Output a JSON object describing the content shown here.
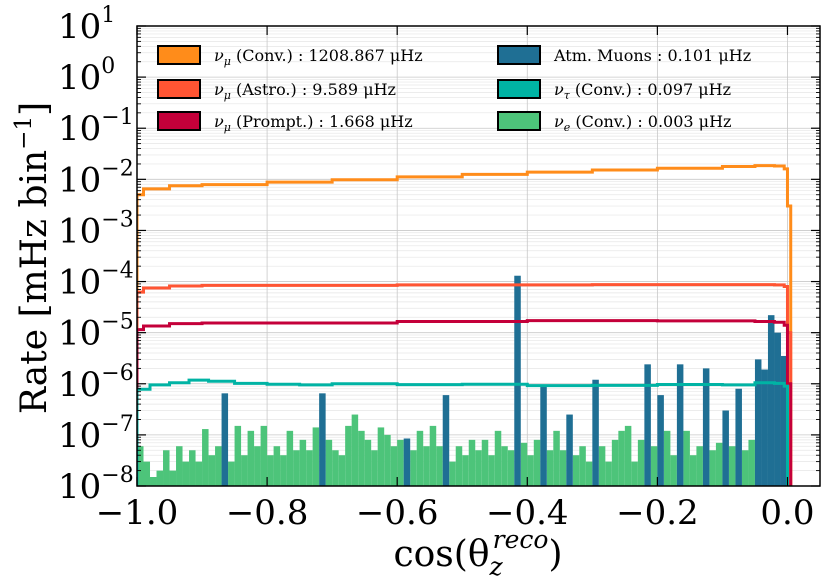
{
  "chart_data": {
    "type": "step-histogram",
    "xlabel": "cos(θ",
    "xlabel_sub": "z",
    "xlabel_sup": "reco",
    "xlabel_close": ")",
    "ylabel": "Rate [mHz bin",
    "ylabel_sup": "−1",
    "ylabel_close": "]",
    "xlim": [
      -1.0,
      0.05
    ],
    "ylim_log10": [
      -8,
      1
    ],
    "x_ticks": [
      {
        "value": -1.0,
        "label": "−1.0"
      },
      {
        "value": -0.8,
        "label": "−0.8"
      },
      {
        "value": -0.6,
        "label": "−0.6"
      },
      {
        "value": -0.4,
        "label": "−0.4"
      },
      {
        "value": -0.2,
        "label": "−0.2"
      },
      {
        "value": 0.0,
        "label": "0.0"
      }
    ],
    "y_ticks": [
      {
        "exp": 1,
        "base": "10",
        "sup": "1"
      },
      {
        "exp": 0,
        "base": "10",
        "sup": "0"
      },
      {
        "exp": -1,
        "base": "10",
        "sup": "−1"
      },
      {
        "exp": -2,
        "base": "10",
        "sup": "−2"
      },
      {
        "exp": -3,
        "base": "10",
        "sup": "−3"
      },
      {
        "exp": -4,
        "base": "10",
        "sup": "−4"
      },
      {
        "exp": -5,
        "base": "10",
        "sup": "−5"
      },
      {
        "exp": -6,
        "base": "10",
        "sup": "−6"
      },
      {
        "exp": -7,
        "base": "10",
        "sup": "−7"
      },
      {
        "exp": -8,
        "base": "10",
        "sup": "−8"
      }
    ],
    "legend": [
      {
        "symbol": "ν",
        "sub": "μ",
        "text": " (Conv.) : 1208.867 μHz",
        "color": "#ff8c1a"
      },
      {
        "symbol": "ν",
        "sub": "μ",
        "text": " (Astro.) : 9.589 μHz",
        "color": "#ff5533"
      },
      {
        "symbol": "ν",
        "sub": "μ",
        "text": " (Prompt.) : 1.668 μHz",
        "color": "#c4003a"
      },
      {
        "symbol": "",
        "sub": "",
        "text": "Atm. Muons : 0.101 μHz",
        "color": "#1f6f94"
      },
      {
        "symbol": "ν",
        "sub": "τ",
        "text": " (Conv.) : 0.097 μHz",
        "color": "#00b3a4"
      },
      {
        "symbol": "ν",
        "sub": "e",
        "text": " (Conv.) : 0.003 μHz",
        "color": "#4dc47a"
      }
    ],
    "series": [
      {
        "name": "nu_mu Conv.",
        "style": "step",
        "color": "#ff8c1a",
        "points": [
          [
            -1.0,
            0.005
          ],
          [
            -0.99,
            0.0065
          ],
          [
            -0.95,
            0.0075
          ],
          [
            -0.9,
            0.0079
          ],
          [
            -0.8,
            0.0088
          ],
          [
            -0.7,
            0.0098
          ],
          [
            -0.6,
            0.0112
          ],
          [
            -0.5,
            0.0125
          ],
          [
            -0.4,
            0.0138
          ],
          [
            -0.3,
            0.0152
          ],
          [
            -0.2,
            0.0165
          ],
          [
            -0.1,
            0.0178
          ],
          [
            -0.05,
            0.0185
          ],
          [
            -0.02,
            0.0182
          ],
          [
            -0.005,
            0.016
          ],
          [
            0.0,
            0.003
          ],
          [
            0.005,
            1e-08
          ]
        ]
      },
      {
        "name": "nu_mu Astro.",
        "style": "step",
        "color": "#ff5533",
        "points": [
          [
            -1.0,
            6.2e-05
          ],
          [
            -0.99,
            7.5e-05
          ],
          [
            -0.95,
            8.2e-05
          ],
          [
            -0.9,
            8.4e-05
          ],
          [
            -0.6,
            8.6e-05
          ],
          [
            -0.3,
            8.7e-05
          ],
          [
            -0.1,
            8.7e-05
          ],
          [
            -0.02,
            8.6e-05
          ],
          [
            -0.005,
            8e-05
          ],
          [
            0.0,
            1e-05
          ],
          [
            0.005,
            1e-08
          ]
        ]
      },
      {
        "name": "nu_mu Prompt.",
        "style": "step",
        "color": "#c4003a",
        "points": [
          [
            -1.0,
            1.15e-05
          ],
          [
            -0.99,
            1.35e-05
          ],
          [
            -0.95,
            1.5e-05
          ],
          [
            -0.9,
            1.55e-05
          ],
          [
            -0.6,
            1.65e-05
          ],
          [
            -0.4,
            1.72e-05
          ],
          [
            -0.2,
            1.7e-05
          ],
          [
            -0.05,
            1.65e-05
          ],
          [
            -0.02,
            1.6e-05
          ],
          [
            -0.005,
            1.4e-05
          ],
          [
            0.0,
            1e-06
          ],
          [
            0.005,
            1e-08
          ]
        ]
      },
      {
        "name": "nu_tau Conv.",
        "style": "step",
        "color": "#00b3a4",
        "points": [
          [
            -1.0,
            7.8e-07
          ],
          [
            -0.98,
            9.5e-07
          ],
          [
            -0.95,
            1.05e-06
          ],
          [
            -0.92,
            1.18e-06
          ],
          [
            -0.89,
            1.12e-06
          ],
          [
            -0.85,
            1.02e-06
          ],
          [
            -0.8,
            9.8e-07
          ],
          [
            -0.75,
            9.5e-07
          ],
          [
            -0.7,
            1e-06
          ],
          [
            -0.6,
            9.6e-07
          ],
          [
            -0.5,
            9.8e-07
          ],
          [
            -0.4,
            9.2e-07
          ],
          [
            -0.3,
            9.3e-07
          ],
          [
            -0.2,
            9.7e-07
          ],
          [
            -0.1,
            9.5e-07
          ],
          [
            -0.05,
            1.05e-06
          ],
          [
            -0.02,
            1.02e-06
          ],
          [
            -0.005,
            9e-07
          ],
          [
            0.0,
            1e-08
          ]
        ]
      },
      {
        "name": "Atm. Muons",
        "style": "bars",
        "color": "#1f6f94",
        "bin_width": 0.01,
        "bars": [
          [
            -0.865,
            6.5e-07
          ],
          [
            -0.715,
            6.5e-07
          ],
          [
            -0.585,
            8.5e-08
          ],
          [
            -0.525,
            6e-07
          ],
          [
            -0.415,
            0.00013
          ],
          [
            -0.375,
            9e-07
          ],
          [
            -0.335,
            2.5e-07
          ],
          [
            -0.295,
            1.2e-06
          ],
          [
            -0.215,
            2.4e-06
          ],
          [
            -0.195,
            6e-07
          ],
          [
            -0.165,
            2.4e-06
          ],
          [
            -0.125,
            2e-06
          ],
          [
            -0.095,
            3e-07
          ],
          [
            -0.075,
            8e-07
          ],
          [
            -0.045,
            3e-06
          ],
          [
            -0.035,
            1.9e-06
          ],
          [
            -0.025,
            2.2e-05
          ],
          [
            -0.015,
            1e-05
          ],
          [
            -0.005,
            3.5e-06
          ]
        ]
      },
      {
        "name": "nu_e Conv.",
        "style": "bars",
        "color": "#4dc47a",
        "bin_width": 0.01,
        "bars": [
          [
            -0.995,
            6e-08
          ],
          [
            -0.985,
            3e-08
          ],
          [
            -0.975,
            1.5e-08
          ],
          [
            -0.965,
            2e-08
          ],
          [
            -0.955,
            5e-08
          ],
          [
            -0.945,
            2e-08
          ],
          [
            -0.935,
            6e-08
          ],
          [
            -0.925,
            3e-08
          ],
          [
            -0.915,
            5e-08
          ],
          [
            -0.905,
            3e-08
          ],
          [
            -0.895,
            1.3e-07
          ],
          [
            -0.885,
            4e-08
          ],
          [
            -0.875,
            6e-08
          ],
          [
            -0.855,
            3e-08
          ],
          [
            -0.845,
            1.5e-07
          ],
          [
            -0.835,
            4e-08
          ],
          [
            -0.825,
            1.2e-07
          ],
          [
            -0.815,
            6e-08
          ],
          [
            -0.805,
            1.5e-07
          ],
          [
            -0.795,
            4e-08
          ],
          [
            -0.785,
            6e-08
          ],
          [
            -0.775,
            4e-08
          ],
          [
            -0.765,
            1.2e-07
          ],
          [
            -0.755,
            5e-08
          ],
          [
            -0.745,
            8e-08
          ],
          [
            -0.735,
            5e-08
          ],
          [
            -0.725,
            1.4e-07
          ],
          [
            -0.705,
            8e-08
          ],
          [
            -0.695,
            5e-08
          ],
          [
            -0.685,
            4e-08
          ],
          [
            -0.675,
            1.5e-07
          ],
          [
            -0.665,
            2.5e-07
          ],
          [
            -0.655,
            1.2e-07
          ],
          [
            -0.645,
            8e-08
          ],
          [
            -0.635,
            5e-08
          ],
          [
            -0.625,
            1.4e-07
          ],
          [
            -0.615,
            1e-07
          ],
          [
            -0.605,
            6e-08
          ],
          [
            -0.595,
            8e-08
          ],
          [
            -0.575,
            5e-08
          ],
          [
            -0.565,
            1.2e-07
          ],
          [
            -0.555,
            6e-08
          ],
          [
            -0.545,
            1.5e-07
          ],
          [
            -0.535,
            6e-08
          ],
          [
            -0.515,
            3e-08
          ],
          [
            -0.505,
            6e-08
          ],
          [
            -0.495,
            4e-08
          ],
          [
            -0.485,
            8e-08
          ],
          [
            -0.475,
            5e-08
          ],
          [
            -0.465,
            8e-08
          ],
          [
            -0.455,
            4e-08
          ],
          [
            -0.445,
            1.2e-07
          ],
          [
            -0.435,
            6e-08
          ],
          [
            -0.425,
            5e-08
          ],
          [
            -0.405,
            7e-08
          ],
          [
            -0.395,
            4e-08
          ],
          [
            -0.385,
            8e-08
          ],
          [
            -0.365,
            5e-08
          ],
          [
            -0.355,
            1.2e-07
          ],
          [
            -0.345,
            5e-08
          ],
          [
            -0.325,
            4e-08
          ],
          [
            -0.315,
            6e-08
          ],
          [
            -0.305,
            3e-08
          ],
          [
            -0.285,
            6e-08
          ],
          [
            -0.275,
            3e-08
          ],
          [
            -0.265,
            8e-08
          ],
          [
            -0.255,
            1.2e-07
          ],
          [
            -0.245,
            1.5e-07
          ],
          [
            -0.235,
            3e-08
          ],
          [
            -0.225,
            8e-08
          ],
          [
            -0.205,
            6e-08
          ],
          [
            -0.185,
            1.2e-07
          ],
          [
            -0.175,
            4e-08
          ],
          [
            -0.155,
            1.2e-07
          ],
          [
            -0.145,
            4e-08
          ],
          [
            -0.135,
            6e-08
          ],
          [
            -0.115,
            5e-08
          ],
          [
            -0.105,
            7e-08
          ],
          [
            -0.085,
            6e-08
          ],
          [
            -0.065,
            5e-08
          ],
          [
            -0.055,
            8e-08
          ]
        ]
      }
    ]
  }
}
